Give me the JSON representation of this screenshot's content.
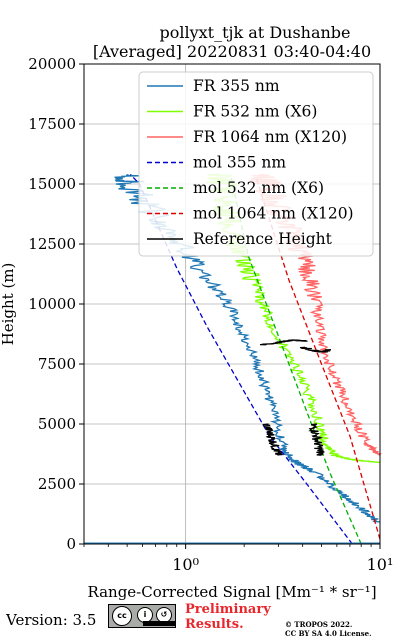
{
  "chart_data": {
    "type": "line",
    "title_line1": "pollyxt_tjk at Dushanbe",
    "title_line2": "[Averaged] 20220831 03:40-04:40",
    "xlabel": "Range-Corrected Signal [Mm⁻¹ * sr⁻¹]",
    "ylabel": "Height (m)",
    "xscale": "log",
    "xlim": [
      0.3,
      10
    ],
    "ylim": [
      0,
      20000
    ],
    "xticks": [
      {
        "value": 1,
        "label": "10⁰"
      },
      {
        "value": 10,
        "label": "10¹"
      }
    ],
    "yticks": [
      0,
      2500,
      5000,
      7500,
      10000,
      12500,
      15000,
      17500,
      20000
    ],
    "grid": true,
    "legend_position": "top-right",
    "series": [
      {
        "name": "FR 355 nm",
        "color": "#1f77b4",
        "style": "solid",
        "noisy": true,
        "points": [
          [
            9.9,
            900
          ],
          [
            8.5,
            1300
          ],
          [
            6.8,
            1900
          ],
          [
            5.5,
            2500
          ],
          [
            4.6,
            3000
          ],
          [
            3.9,
            3300
          ],
          [
            3.6,
            3500
          ],
          [
            3.2,
            4000
          ],
          [
            2.95,
            5000
          ],
          [
            2.7,
            6000
          ],
          [
            2.45,
            7000
          ],
          [
            2.2,
            8000
          ],
          [
            1.9,
            9000
          ],
          [
            1.65,
            10000
          ],
          [
            1.3,
            11000
          ],
          [
            1.05,
            12000
          ],
          [
            0.85,
            13000
          ],
          [
            0.65,
            14000
          ],
          [
            0.52,
            15000
          ],
          [
            0.5,
            15400
          ]
        ]
      },
      {
        "name": "FR 532 nm (X6)",
        "color": "#7fff00",
        "style": "solid",
        "noisy": true,
        "points": [
          [
            9.8,
            3400
          ],
          [
            7.5,
            3500
          ],
          [
            5.8,
            3700
          ],
          [
            5.2,
            4200
          ],
          [
            4.9,
            5000
          ],
          [
            4.4,
            6000
          ],
          [
            3.9,
            7000
          ],
          [
            3.3,
            8000
          ],
          [
            2.8,
            9000
          ],
          [
            2.5,
            10000
          ],
          [
            2.2,
            11000
          ],
          [
            1.95,
            12000
          ],
          [
            1.75,
            13000
          ],
          [
            1.6,
            14000
          ],
          [
            1.55,
            15000
          ],
          [
            1.5,
            15400
          ]
        ]
      },
      {
        "name": "FR 1064 nm (X120)",
        "color": "#ff6464",
        "style": "solid",
        "noisy": true,
        "points": [
          [
            9.9,
            3700
          ],
          [
            8.5,
            4200
          ],
          [
            7.4,
            5200
          ],
          [
            6.6,
            6000
          ],
          [
            5.8,
            7000
          ],
          [
            5.2,
            8000
          ],
          [
            4.9,
            9000
          ],
          [
            4.7,
            10000
          ],
          [
            4.4,
            11000
          ],
          [
            4.0,
            12000
          ],
          [
            3.5,
            13000
          ],
          [
            3.0,
            14000
          ],
          [
            2.6,
            15000
          ],
          [
            2.4,
            15400
          ]
        ]
      },
      {
        "name": "mol 355 nm",
        "color": "#0000cd",
        "style": "dashed",
        "points": [
          [
            7.2,
            0
          ],
          [
            4.2,
            2500
          ],
          [
            2.7,
            4500
          ],
          [
            1.3,
            9000
          ],
          [
            0.9,
            11500
          ],
          [
            0.58,
            15000
          ],
          [
            0.52,
            15400
          ]
        ]
      },
      {
        "name": "mol 532 nm (X6)",
        "color": "#00b000",
        "style": "dashed",
        "points": [
          [
            8.0,
            0
          ],
          [
            5.5,
            3000
          ],
          [
            3.4,
            7500
          ],
          [
            2.1,
            12000
          ],
          [
            1.7,
            15400
          ]
        ]
      },
      {
        "name": "mol 1064 nm (X120)",
        "color": "#dd0000",
        "style": "dashed",
        "points": [
          [
            10.0,
            200
          ],
          [
            7.0,
            4500
          ],
          [
            5.0,
            7500
          ],
          [
            3.4,
            11000
          ],
          [
            2.3,
            15300
          ]
        ]
      },
      {
        "name": "Reference Height",
        "color": "#000000",
        "style": "solid",
        "noisy": true,
        "segments": [
          [
            [
              2.6,
              5000
            ],
            [
              2.75,
              4500
            ],
            [
              2.9,
              4000
            ],
            [
              3.0,
              3700
            ]
          ],
          [
            [
              4.5,
              5000
            ],
            [
              4.7,
              4500
            ],
            [
              4.85,
              4000
            ],
            [
              5.0,
              3700
            ]
          ],
          [
            [
              2.5,
              8300
            ],
            [
              3.0,
              8400
            ],
            [
              3.6,
              8500
            ],
            [
              4.2,
              8450
            ]
          ],
          [
            [
              4.0,
              8200
            ],
            [
              4.6,
              8050
            ],
            [
              5.1,
              8000
            ],
            [
              5.5,
              8100
            ]
          ]
        ]
      }
    ]
  },
  "footer": {
    "version": "Version: 3.5",
    "cc_badge": "cc by sa",
    "preliminary_line1": "Preliminary",
    "preliminary_line2": "Results.",
    "copyright": "© TROPOS 2022.",
    "license": "CC BY SA 4.0 License."
  }
}
